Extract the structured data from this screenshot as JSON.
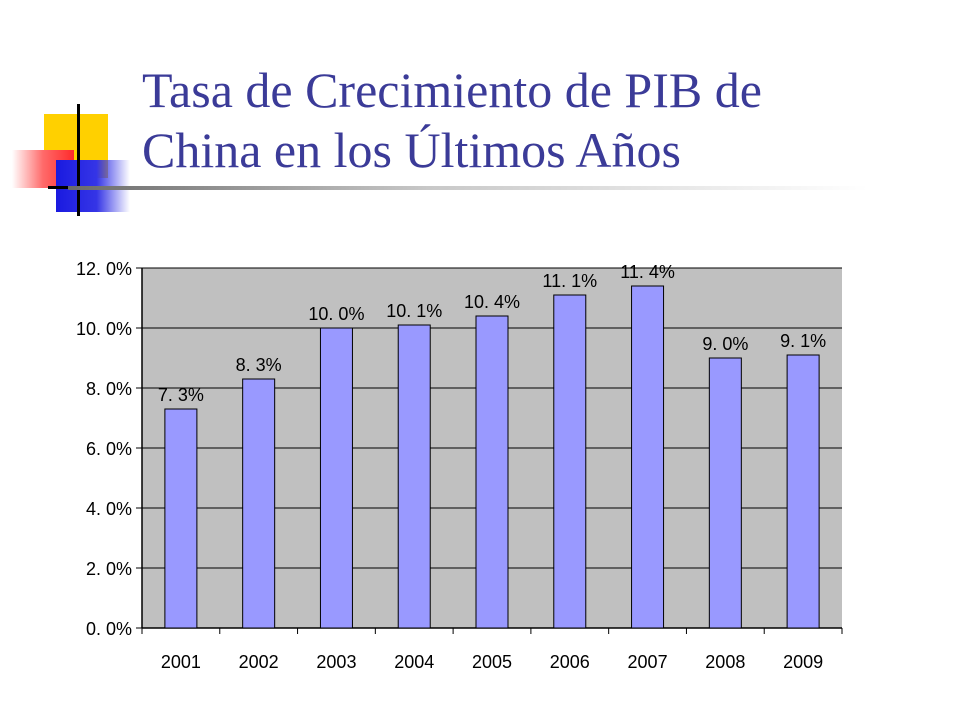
{
  "slide": {
    "title_line1": "Tasa de Crecimiento de PIB de",
    "title_line2": "China en los Últimos Años"
  },
  "chart_data": {
    "type": "bar",
    "categories": [
      "2001",
      "2002",
      "2003",
      "2004",
      "2005",
      "2006",
      "2007",
      "2008",
      "2009"
    ],
    "values": [
      7.3,
      8.3,
      10.0,
      10.1,
      10.4,
      11.1,
      11.4,
      9.0,
      9.1
    ],
    "data_labels": [
      "7. 3%",
      "8. 3%",
      "10. 0%",
      "10. 1%",
      "10. 4%",
      "11. 1%",
      "11. 4%",
      "9. 0%",
      "9. 1%"
    ],
    "y_ticks": [
      0,
      2,
      4,
      6,
      8,
      10,
      12
    ],
    "y_tick_labels": [
      "0. 0%",
      "2. 0%",
      "4. 0%",
      "6. 0%",
      "8. 0%",
      "10. 0%",
      "12. 0%"
    ],
    "ylim": [
      0,
      12
    ],
    "grid": true,
    "legend": "none",
    "colors": {
      "bar_fill": "#9999ff",
      "bar_stroke": "#000000",
      "plot_background": "#c0c0c0",
      "title": "#3b3b98"
    }
  }
}
